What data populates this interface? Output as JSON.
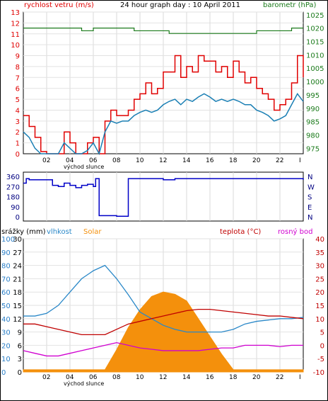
{
  "header": {
    "title": "24 hour graph day : 10 April 2011",
    "wind_label": "rychlost vetru (m/s)",
    "baro_label": "barometr (hPa)"
  },
  "direction_labels": [
    "N",
    "W",
    "S",
    "E",
    "N"
  ],
  "bottom_labels": {
    "rain": "srážky (mm)",
    "humidity": "vlhkost",
    "solar": "Solar",
    "temp": "teplota (°C)",
    "dew": "rosný bod"
  },
  "sunrise_label": "východ slunce",
  "x_ticks": [
    "02",
    "04",
    "06",
    "08",
    "10",
    "12",
    "14",
    "16",
    "18",
    "20",
    "22",
    "I"
  ],
  "colors": {
    "wind_gust": "#e00000",
    "wind_avg": "#1a7fb4",
    "baro": "#1a7a1a",
    "direction": "#0000c8",
    "humidity": "#2a88c8",
    "solar": "#f4900c",
    "temp": "#c00000",
    "dew": "#d000d0",
    "rain_axis": "#2a7fc8",
    "right_axis": "#c00000"
  },
  "chart_data": [
    {
      "type": "line",
      "title": "24 hour graph day : 10 April 2011",
      "x_hours": [
        0,
        0.5,
        1,
        1.5,
        2,
        2.5,
        3,
        3.5,
        4,
        4.5,
        5,
        5.5,
        6,
        6.5,
        7,
        7.5,
        8,
        8.5,
        9,
        9.5,
        10,
        10.5,
        11,
        11.5,
        12,
        12.5,
        13,
        13.5,
        14,
        14.5,
        15,
        15.5,
        16,
        16.5,
        17,
        17.5,
        18,
        18.5,
        19,
        19.5,
        20,
        20.5,
        21,
        21.5,
        22,
        22.5,
        23,
        23.5,
        24
      ],
      "y_left_label": "rychlost vetru (m/s)",
      "y_left_ticks": [
        0,
        1,
        2,
        3,
        4,
        5,
        6,
        7,
        8,
        9,
        10,
        11,
        12,
        13
      ],
      "y_right_label": "barometr (hPa)",
      "y_right_ticks": [
        975,
        980,
        985,
        990,
        995,
        1000,
        1005,
        1010,
        1015,
        1020,
        1025
      ],
      "series": [
        {
          "values": [
            3.5,
            2.5,
            1.5,
            0.2,
            0,
            0,
            0,
            2,
            1,
            0,
            0,
            1,
            1.5,
            0,
            3,
            4,
            3.5,
            3.5,
            4,
            5,
            5.5,
            6.5,
            5.5,
            6,
            7.5,
            7.5,
            9,
            7,
            8,
            7.5,
            9,
            8.5,
            8.5,
            7.5,
            8,
            7,
            8.5,
            7.5,
            6.5,
            7,
            6,
            5.5,
            5,
            4,
            4.5,
            5,
            6.5,
            9,
            7
          ]
        },
        {
          "values": [
            2,
            1.5,
            0.5,
            0,
            0,
            0,
            0,
            1,
            0.5,
            0,
            0,
            0.3,
            1,
            0,
            2,
            3,
            2.8,
            3,
            3,
            3.5,
            3.8,
            4,
            3.8,
            4,
            4.5,
            4.8,
            5,
            4.5,
            5,
            4.8,
            5.2,
            5.5,
            5.2,
            4.8,
            5,
            4.8,
            5,
            4.8,
            4.5,
            4.5,
            4,
            3.8,
            3.5,
            3,
            3.2,
            3.5,
            4.5,
            5.5,
            4.8
          ]
        },
        {
          "values": [
            1020,
            1020,
            1020,
            1020,
            1020,
            1020,
            1020,
            1020,
            1020,
            1020,
            1019,
            1019,
            1020,
            1020,
            1020,
            1020,
            1020,
            1020,
            1020,
            1019,
            1019,
            1019,
            1019,
            1019,
            1019,
            1018,
            1018,
            1018,
            1018,
            1018,
            1018,
            1018,
            1018,
            1018,
            1018,
            1018,
            1018,
            1018,
            1018,
            1018,
            1019,
            1019,
            1019,
            1019,
            1019,
            1019,
            1020,
            1020,
            1020
          ]
        }
      ]
    },
    {
      "type": "line",
      "y_ticks": [
        0,
        90,
        180,
        270,
        360
      ],
      "x_hours": [
        0,
        0.25,
        0.5,
        1,
        2,
        2.5,
        3,
        3.5,
        4,
        4.5,
        5,
        5.5,
        6,
        6.2,
        6.5,
        7,
        8,
        9,
        10,
        11,
        12,
        13,
        14,
        15,
        16,
        17,
        18,
        19,
        20,
        21,
        22,
        23,
        24
      ],
      "series": [
        {
          "values": [
            300,
            340,
            330,
            330,
            330,
            280,
            270,
            300,
            280,
            260,
            280,
            290,
            270,
            340,
            10,
            10,
            5,
            340,
            340,
            340,
            330,
            340,
            340,
            340,
            340,
            340,
            340,
            340,
            340,
            340,
            340,
            340,
            330
          ]
        }
      ]
    },
    {
      "type": "line",
      "x_hours": [
        0,
        1,
        2,
        3,
        4,
        5,
        6,
        7,
        8,
        9,
        10,
        11,
        12,
        13,
        14,
        15,
        16,
        17,
        18,
        19,
        20,
        21,
        22,
        23,
        24
      ],
      "y_left_label": "srážky (mm)",
      "y_left_ticks": [
        0,
        3,
        6,
        9,
        12,
        15,
        18,
        21,
        24,
        27,
        30
      ],
      "y_humidity_ticks": [
        0,
        10,
        20,
        30,
        40,
        50,
        60,
        70,
        80,
        90,
        100
      ],
      "y_right_label": "teplota (°C)",
      "y_right_ticks": [
        -10,
        -5,
        0,
        5,
        10,
        15,
        20,
        25,
        30,
        35,
        40
      ],
      "series": [
        {
          "name": "vlhkost",
          "values": [
            42,
            42,
            44,
            50,
            60,
            70,
            76,
            80,
            70,
            58,
            45,
            40,
            35,
            32,
            30,
            30,
            30,
            30,
            32,
            36,
            38,
            39,
            40,
            40,
            41
          ]
        },
        {
          "name": "Solar",
          "values": [
            0.5,
            0.5,
            0.5,
            0.5,
            0.5,
            0.5,
            0.5,
            0.5,
            5,
            10,
            14,
            17,
            18,
            17.5,
            16,
            12,
            8,
            4,
            0.5,
            0.5,
            0.5,
            0.5,
            0.5,
            0.5,
            0.5
          ]
        },
        {
          "name": "teplota (°C)",
          "values": [
            8,
            8,
            7,
            6,
            5,
            4,
            4,
            4,
            6,
            8,
            9,
            10,
            11,
            12,
            13,
            13.5,
            13.5,
            13,
            12.5,
            12,
            11.5,
            11,
            11,
            10.5,
            10
          ]
        },
        {
          "name": "rosný bod",
          "values": [
            -2,
            -3,
            -4,
            -4,
            -3,
            -2,
            -1,
            0,
            1,
            0,
            -1,
            -1.5,
            -2,
            -2,
            -2,
            -2,
            -1.5,
            -1,
            -1,
            0,
            0,
            0,
            -0.5,
            0,
            0
          ]
        }
      ]
    }
  ]
}
